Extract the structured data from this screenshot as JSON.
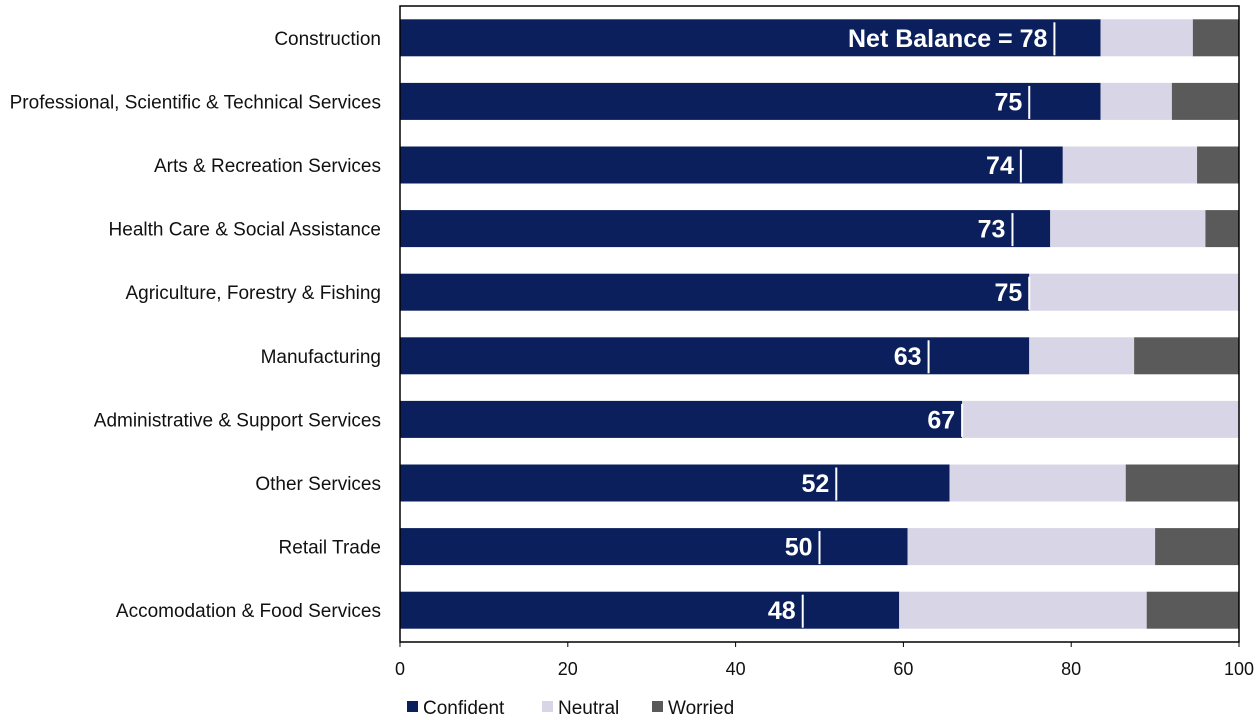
{
  "chart_data": {
    "type": "bar",
    "orientation": "horizontal",
    "stacked": true,
    "categories": [
      "Construction",
      "Professional, Scientific & Technical Services",
      "Arts & Recreation Services",
      "Health Care & Social Assistance",
      "Agriculture, Forestry & Fishing",
      "Manufacturing",
      "Administrative & Support Services",
      "Other Services",
      "Retail Trade",
      "Accomodation & Food Services"
    ],
    "series": [
      {
        "name": "Confident",
        "color": "#0a1f5c",
        "values": [
          83.5,
          83.5,
          79,
          77.5,
          75,
          75,
          67,
          65.5,
          60.5,
          59.5
        ]
      },
      {
        "name": "Neutral",
        "color": "#d8d5e6",
        "values": [
          11,
          8.5,
          16,
          18.5,
          25,
          12.5,
          33,
          21,
          29.5,
          29.5
        ]
      },
      {
        "name": "Worried",
        "color": "#5a5a5a",
        "values": [
          5.5,
          8,
          5,
          4,
          0,
          12.5,
          0,
          13.5,
          10,
          11
        ]
      }
    ],
    "net_balance": [
      78,
      75,
      74,
      73,
      75,
      63,
      67,
      52,
      50,
      48
    ],
    "net_balance_labels": [
      "Net Balance = 78",
      "75",
      "74",
      "73",
      "75",
      "63",
      "67",
      "52",
      "50",
      "48"
    ],
    "xlim": [
      0,
      100
    ],
    "xticks": [
      0,
      20,
      40,
      60,
      80,
      100
    ],
    "xtick_labels": [
      "0",
      "20",
      "40",
      "60",
      "80",
      "100"
    ],
    "legend_position": "bottom",
    "grid": false
  }
}
